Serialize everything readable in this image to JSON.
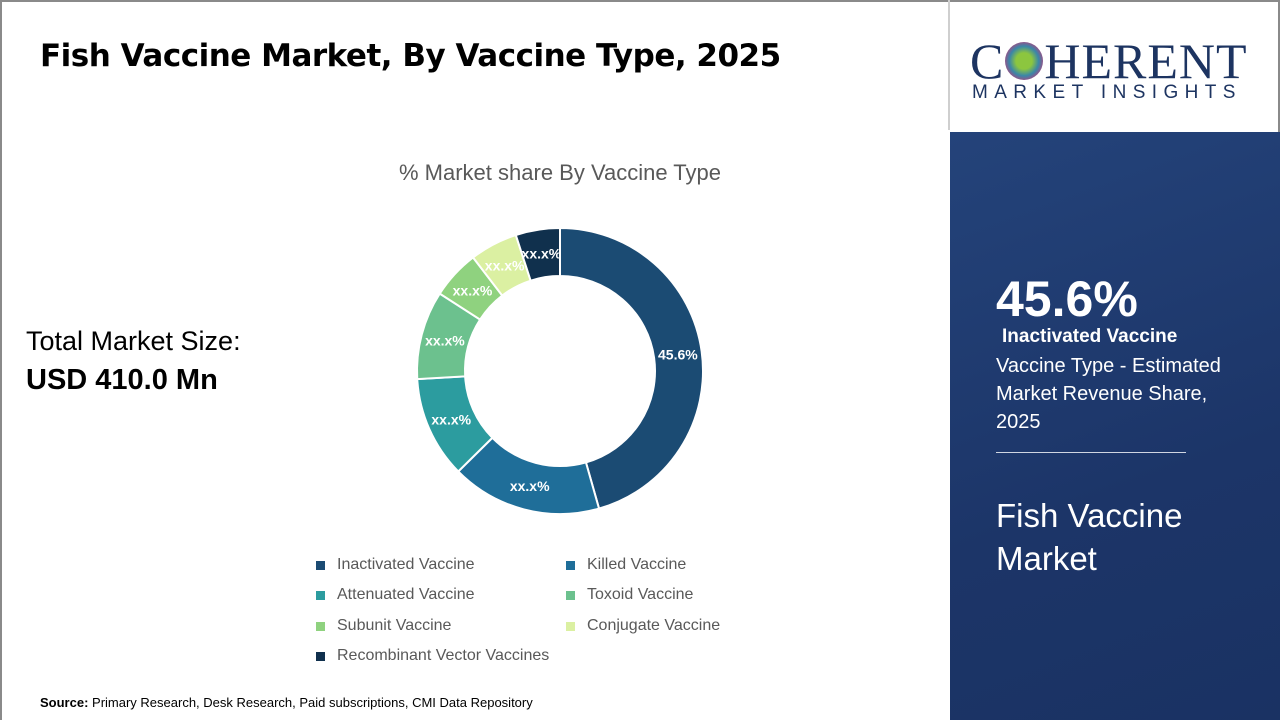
{
  "header": {
    "title": "Fish Vaccine Market, By Vaccine Type, 2025"
  },
  "market_size": {
    "label": "Total Market Size:",
    "value": "USD 410.0 Mn"
  },
  "chart_data": {
    "type": "pie",
    "donut": true,
    "title": "% Market share By Vaccine Type",
    "categories": [
      "Inactivated Vaccine",
      "Killed Vaccine",
      "Attenuated Vaccine",
      "Toxoid Vaccine",
      "Subunit Vaccine",
      "Conjugate Vaccine",
      "Recombinant Vector Vaccines"
    ],
    "values": [
      45.6,
      17.0,
      11.5,
      10.0,
      5.5,
      5.4,
      5.0
    ],
    "data_labels": [
      "45.6%",
      "xx.x%",
      "xx.x%",
      "xx.x%",
      "xx.x%",
      "xx.x%",
      "xx.x%"
    ],
    "colors": [
      "#1b4b73",
      "#1f6e99",
      "#2c9c9f",
      "#6cc18e",
      "#8fd27f",
      "#dbf0a2",
      "#10304d"
    ],
    "legend_position": "bottom"
  },
  "source": {
    "label": "Source:",
    "text": "Primary Research, Desk Research, Paid subscriptions, CMI Data Repository"
  },
  "logo": {
    "line1": "COHERENT",
    "line2": "MARKET INSIGHTS"
  },
  "panel": {
    "percent": "45.6%",
    "segment": "Inactivated Vaccine",
    "description": "Vaccine Type - Estimated Market Revenue Share, 2025",
    "market": "Fish Vaccine Market",
    "bg_color": "#1e3a6b"
  }
}
